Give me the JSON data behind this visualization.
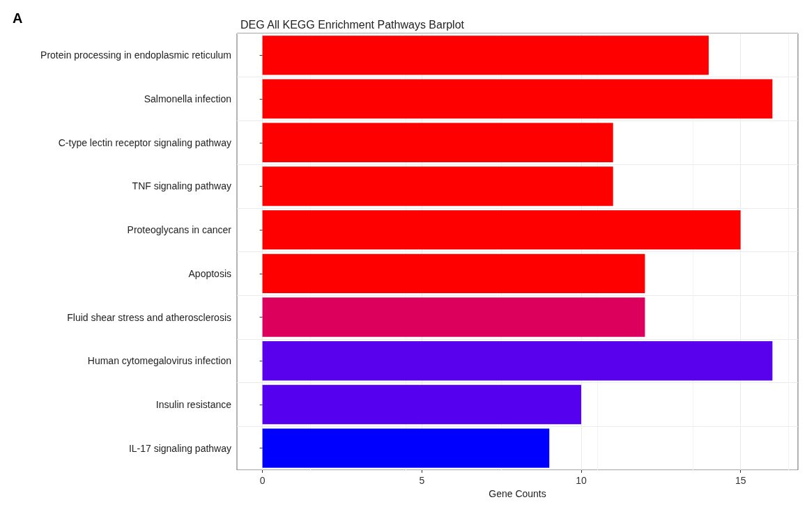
{
  "chart_data": {
    "type": "bar",
    "orientation": "horizontal",
    "title": "DEG All KEGG Enrichment Pathways Barplot",
    "xlabel": "Gene Counts",
    "annotations": [
      "A"
    ],
    "categories": [
      "Protein processing in endoplasmic reticulum",
      "Salmonella infection",
      "C-type lectin receptor signaling pathway",
      "TNF signaling pathway",
      "Proteoglycans in cancer",
      "Apoptosis",
      "Fluid shear stress and atherosclerosis",
      "Human cytomegalovirus infection",
      "Insulin resistance",
      "IL-17 signaling pathway"
    ],
    "values": [
      14,
      16,
      11,
      11,
      15,
      12,
      12,
      16,
      10,
      9
    ],
    "colors": [
      "#ff0000",
      "#ff0000",
      "#ff0000",
      "#ff0000",
      "#ff0000",
      "#ff0000",
      "#dc005c",
      "#5900ec",
      "#5600f0",
      "#0000ff"
    ],
    "xlim": [
      -0.8,
      16.8
    ],
    "xticks": [
      0,
      5,
      10,
      15
    ],
    "grid": true
  }
}
